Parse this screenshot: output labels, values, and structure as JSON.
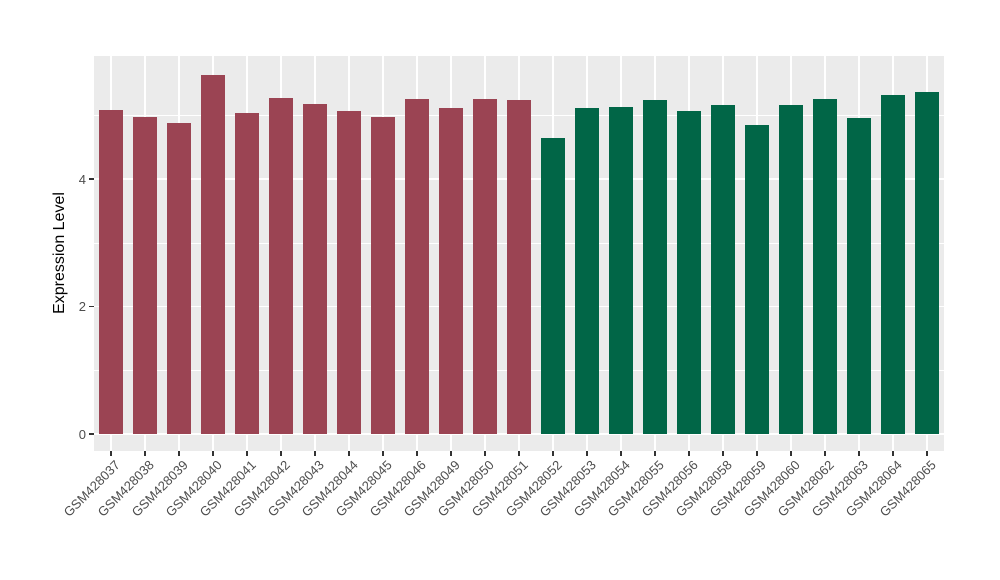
{
  "chart_data": {
    "type": "bar",
    "title": "",
    "xlabel": "",
    "ylabel": "Expression Level",
    "ylim": [
      0,
      5.93
    ],
    "yticks_major": [
      0,
      2,
      4
    ],
    "yticks_minor": [
      1,
      3,
      5
    ],
    "grid": "white major and minor gridlines on gray panel, vertical gridline at each category",
    "legend_position": "none",
    "categories": [
      "GSM428037",
      "GSM428038",
      "GSM428039",
      "GSM428040",
      "GSM428041",
      "GSM428042",
      "GSM428043",
      "GSM428044",
      "GSM428045",
      "GSM428046",
      "GSM428049",
      "GSM428050",
      "GSM428051",
      "GSM428052",
      "GSM428053",
      "GSM428054",
      "GSM428055",
      "GSM428056",
      "GSM428058",
      "GSM428059",
      "GSM428060",
      "GSM428062",
      "GSM428063",
      "GSM428064",
      "GSM428065"
    ],
    "series": [
      {
        "name": "group-1-maroon",
        "color": "#9B4453",
        "categories": [
          "GSM428037",
          "GSM428038",
          "GSM428039",
          "GSM428040",
          "GSM428041",
          "GSM428042",
          "GSM428043",
          "GSM428044",
          "GSM428045",
          "GSM428046",
          "GSM428049",
          "GSM428050",
          "GSM428051"
        ],
        "values": [
          5.08,
          4.98,
          4.88,
          5.63,
          5.03,
          5.27,
          5.17,
          5.06,
          4.97,
          5.25,
          5.12,
          5.26,
          5.24
        ]
      },
      {
        "name": "group-2-green",
        "color": "#016647",
        "categories": [
          "GSM428052",
          "GSM428053",
          "GSM428054",
          "GSM428055",
          "GSM428056",
          "GSM428058",
          "GSM428059",
          "GSM428060",
          "GSM428062",
          "GSM428063",
          "GSM428064",
          "GSM428065"
        ],
        "values": [
          4.65,
          5.11,
          5.13,
          5.24,
          5.07,
          5.16,
          4.85,
          5.16,
          5.25,
          4.95,
          5.31,
          5.37
        ]
      }
    ]
  },
  "style": {
    "figure_background": "#FFFFFF",
    "panel_background": "#EBEBEB",
    "grid_color": "#FFFFFF",
    "tick_mark_color": "#333333",
    "tick_label_color": "#4D4D4D",
    "axis_title_color": "#000000"
  }
}
